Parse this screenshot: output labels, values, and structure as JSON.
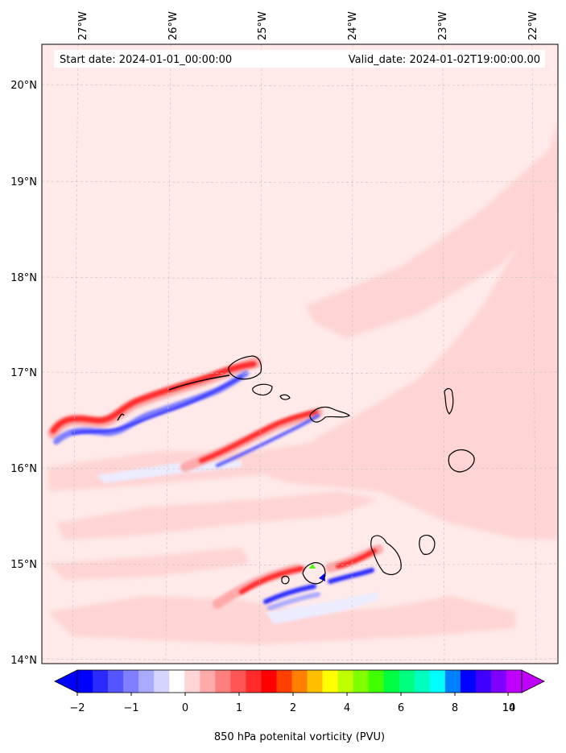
{
  "header": {
    "start_date": "Start date: 2024-01-01_00:00:00",
    "valid_date": "Valid_date: 2024-01-02T19:00:00.00"
  },
  "axes": {
    "lon_labels": [
      "27°W",
      "26°W",
      "25°W",
      "24°W",
      "23°W",
      "22°W"
    ],
    "lat_labels": [
      "20°N",
      "19°N",
      "18°N",
      "17°N",
      "16°N",
      "15°N",
      "14°N"
    ]
  },
  "colorbar": {
    "title": "850 hPa potenital vorticity (PVU)",
    "tick_labels": [
      "−2",
      "−1",
      "0",
      "1",
      "2",
      "4",
      "6",
      "8",
      "10",
      "14"
    ],
    "colors": [
      "#0000ff",
      "#2a2aff",
      "#5555ff",
      "#7f7fff",
      "#aaaaff",
      "#d4d4ff",
      "#ffffff",
      "#ffd4d4",
      "#ffaaaa",
      "#ff7f7f",
      "#ff5555",
      "#ff2a2a",
      "#ff0000",
      "#ff4000",
      "#ff8000",
      "#ffbf00",
      "#ffff00",
      "#bfff00",
      "#80ff00",
      "#40ff00",
      "#00ff40",
      "#00ff80",
      "#00ffbf",
      "#00ffff",
      "#0080ff",
      "#0000ff",
      "#4000ff",
      "#8000ff",
      "#bf00ff"
    ],
    "min_color": "#0000ff",
    "max_color": "#bf00ff"
  },
  "map": {
    "background_color": "#ffe9e9",
    "plateau_color": "#ffd4d4",
    "positive_color": "#ff0000",
    "negative_color": "#0000ff"
  }
}
